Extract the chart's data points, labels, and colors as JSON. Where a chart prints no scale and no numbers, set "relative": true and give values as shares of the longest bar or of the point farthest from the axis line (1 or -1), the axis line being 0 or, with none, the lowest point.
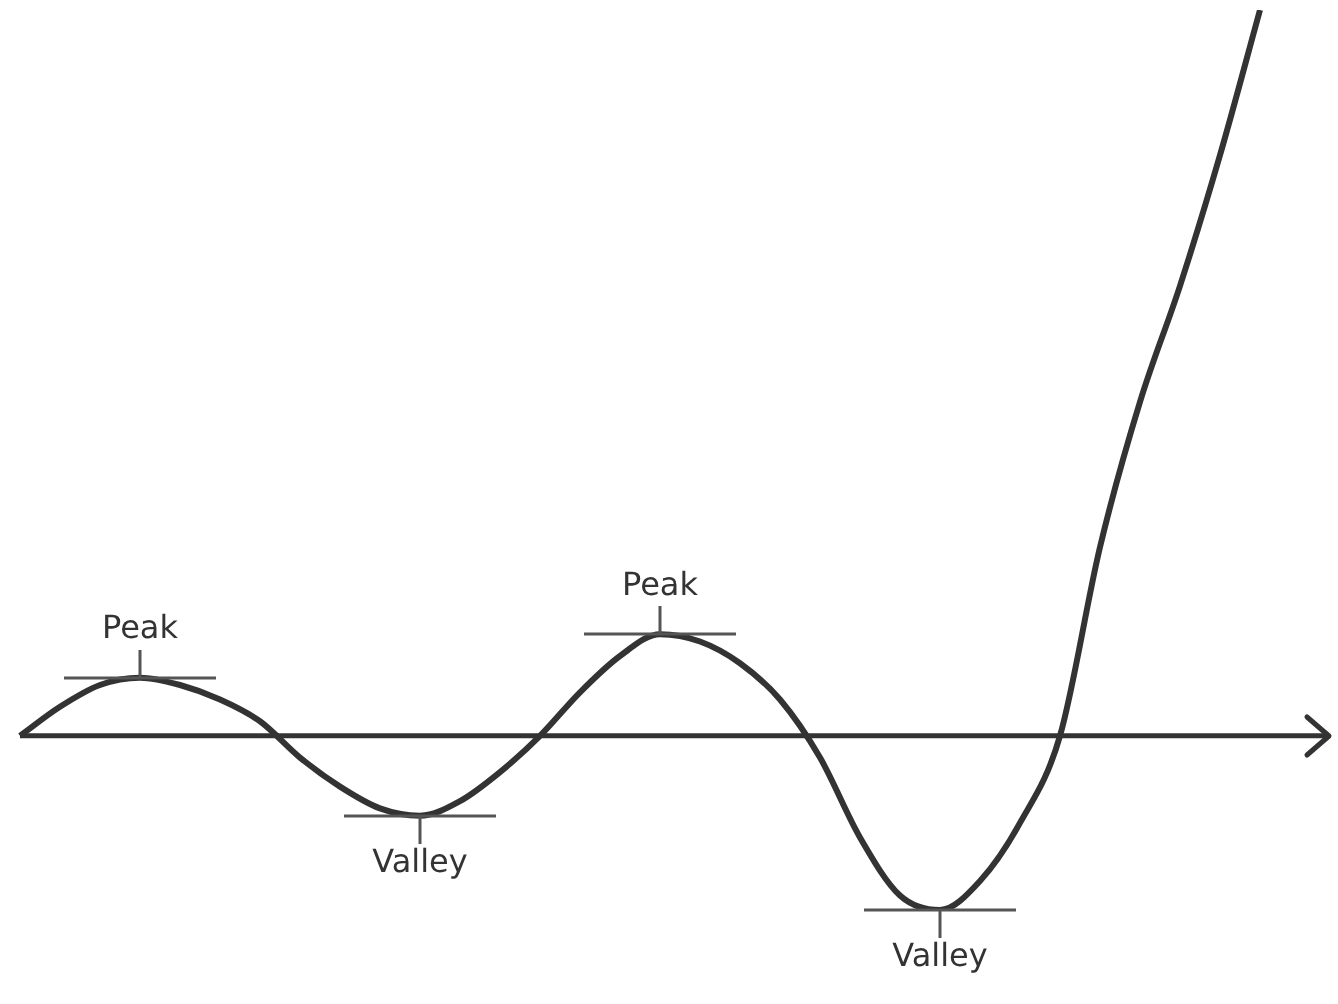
{
  "chart_data": {
    "type": "line",
    "relative": true,
    "color": "#333333",
    "marker": "none",
    "categories": [
      null,
      null,
      null,
      null,
      null,
      null,
      null,
      null,
      null,
      null,
      null,
      null,
      null,
      null,
      null,
      null,
      null,
      null,
      null,
      null,
      null,
      null,
      null,
      null,
      null,
      null,
      null,
      null,
      null,
      null,
      null,
      null
    ],
    "values": [
      0,
      0.04,
      0.07,
      0.08,
      0.07,
      0.05,
      0.02,
      -0.03,
      -0.07,
      -0.1,
      -0.11,
      -0.09,
      -0.05,
      0,
      0.06,
      0.11,
      0.14,
      0.13,
      0.1,
      0.05,
      -0.03,
      -0.14,
      -0.22,
      -0.24,
      -0.2,
      -0.12,
      0,
      0.26,
      0.46,
      0.62,
      0.8,
      1
    ],
    "annotations": [
      {
        "text": "Peak",
        "y": 0.08
      },
      {
        "text": "Valley",
        "y": -0.11
      },
      {
        "text": "Peak",
        "y": 0.14
      },
      {
        "text": "Valley",
        "y": -0.24
      }
    ]
  }
}
